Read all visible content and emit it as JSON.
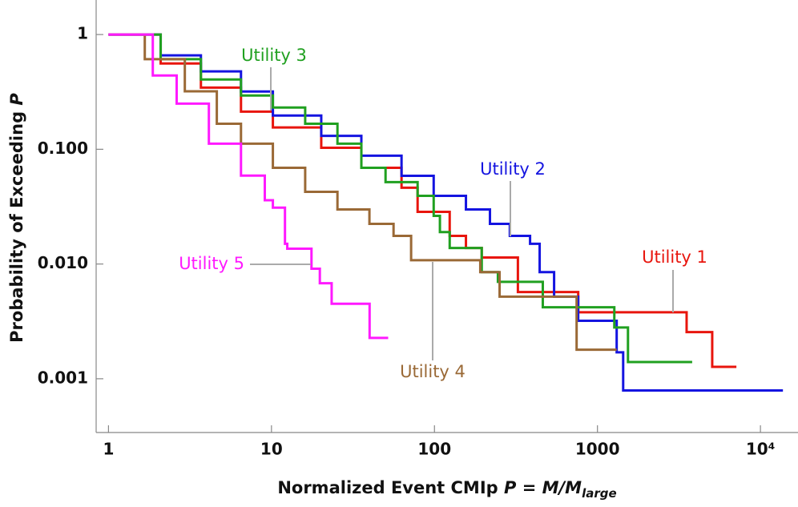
{
  "chart_data": {
    "type": "step",
    "xlog": true,
    "ylog": true,
    "xlabel": {
      "text": "Normalized Event CMIp ",
      "formula": "P = M/M",
      "subscript": "large"
    },
    "ylabel": {
      "text": "Probability of Exceeding ",
      "symbol": "P"
    },
    "xlim": [
      0.84,
      17000
    ],
    "ylim": [
      0.00034,
      2.0
    ],
    "xticks": [
      1,
      10,
      100,
      1000,
      {
        "value": 10000,
        "label": "10⁴"
      }
    ],
    "yticks": [
      1,
      {
        "value": 0.1,
        "label": "0.100"
      },
      {
        "value": 0.01,
        "label": "0.010"
      },
      {
        "value": 0.001,
        "label": "0.001"
      }
    ],
    "series": [
      {
        "name": "Utility 1",
        "color": "#e8150d",
        "x": [
          1,
          2.09,
          3.69,
          6.5,
          10.2,
          20.2,
          35.6,
          62.8,
          78.8,
          124,
          156,
          195,
          325,
          762,
          3524,
          5060,
          7120
        ],
        "values": [
          1,
          0.56,
          0.345,
          0.213,
          0.155,
          0.103,
          0.069,
          0.0462,
          0.0285,
          0.0176,
          0.0138,
          0.0114,
          0.0057,
          0.0038,
          0.00255,
          0.00127,
          0.00127
        ]
      },
      {
        "name": "Utility 2",
        "color": "#1414e0",
        "x": [
          1,
          2.09,
          3.69,
          6.5,
          10.2,
          20.2,
          35.6,
          62.8,
          98.9,
          156,
          219,
          290,
          386,
          442,
          542,
          762,
          1312,
          1438,
          13740
        ],
        "values": [
          1,
          0.658,
          0.477,
          0.319,
          0.197,
          0.131,
          0.088,
          0.0587,
          0.0393,
          0.0299,
          0.0224,
          0.0176,
          0.015,
          0.0085,
          0.0052,
          0.0032,
          0.0017,
          0.00079,
          0.00079
        ]
      },
      {
        "name": "Utility 3",
        "color": "#20a020",
        "x": [
          1,
          2.09,
          3.69,
          6.5,
          10.2,
          16.1,
          25.4,
          35.6,
          50.1,
          78.8,
          98.9,
          108,
          124,
          195,
          245,
          462,
          1269,
          1539,
          3812
        ],
        "values": [
          1,
          0.61,
          0.406,
          0.294,
          0.231,
          0.167,
          0.112,
          0.069,
          0.0517,
          0.0393,
          0.0263,
          0.019,
          0.0138,
          0.0085,
          0.007,
          0.0042,
          0.0028,
          0.0014,
          0.0014
        ]
      },
      {
        "name": "Utility 4",
        "color": "#9a6936",
        "x": [
          1,
          1.67,
          2.94,
          4.62,
          6.5,
          10.2,
          16.1,
          25.4,
          39.9,
          56.1,
          71.9,
          191,
          251,
          745,
          1312
        ],
        "values": [
          1,
          0.61,
          0.32,
          0.167,
          0.112,
          0.069,
          0.0426,
          0.0299,
          0.0224,
          0.0176,
          0.0108,
          0.0085,
          0.0052,
          0.00179,
          0.00179
        ]
      },
      {
        "name": "Utility 5",
        "color": "#ff19ff",
        "x": [
          1,
          1.87,
          2.62,
          4.13,
          6.5,
          9.1,
          10.2,
          12.1,
          12.5,
          17.6,
          19.8,
          23.4,
          40,
          52
        ],
        "values": [
          1,
          0.44,
          0.25,
          0.112,
          0.059,
          0.036,
          0.031,
          0.015,
          0.0136,
          0.0091,
          0.0068,
          0.0045,
          0.00227,
          0.00227
        ]
      }
    ]
  }
}
